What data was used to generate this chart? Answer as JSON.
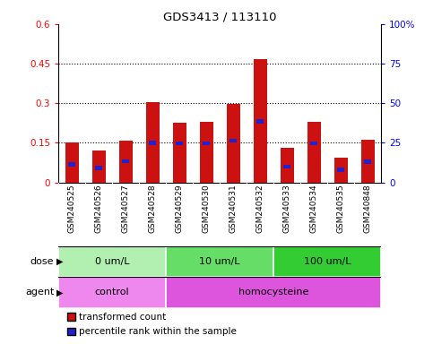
{
  "title": "GDS3413 / 113110",
  "samples": [
    "GSM240525",
    "GSM240526",
    "GSM240527",
    "GSM240528",
    "GSM240529",
    "GSM240530",
    "GSM240531",
    "GSM240532",
    "GSM240533",
    "GSM240534",
    "GSM240535",
    "GSM240848"
  ],
  "red_values": [
    0.15,
    0.122,
    0.158,
    0.305,
    0.225,
    0.23,
    0.297,
    0.468,
    0.132,
    0.228,
    0.095,
    0.163
  ],
  "blue_values": [
    0.068,
    0.055,
    0.08,
    0.15,
    0.148,
    0.148,
    0.158,
    0.23,
    0.06,
    0.148,
    0.048,
    0.078
  ],
  "ylim_left": [
    0,
    0.6
  ],
  "ylim_right": [
    0,
    100
  ],
  "yticks_left": [
    0,
    0.15,
    0.3,
    0.45,
    0.6
  ],
  "ytick_labels_left": [
    "0",
    "0.15",
    "0.3",
    "0.45",
    "0.6"
  ],
  "yticks_right": [
    0,
    25,
    50,
    75,
    100
  ],
  "ytick_labels_right": [
    "0",
    "25",
    "50",
    "75",
    "100%"
  ],
  "dose_groups": [
    {
      "label": "0 um/L",
      "start": 0,
      "end": 4,
      "color": "#b2f0b2"
    },
    {
      "label": "10 um/L",
      "start": 4,
      "end": 8,
      "color": "#66dd66"
    },
    {
      "label": "100 um/L",
      "start": 8,
      "end": 12,
      "color": "#33cc33"
    }
  ],
  "agent_groups": [
    {
      "label": "control",
      "start": 0,
      "end": 4,
      "color": "#ee88ee"
    },
    {
      "label": "homocysteine",
      "start": 4,
      "end": 12,
      "color": "#dd55dd"
    }
  ],
  "bar_color": "#cc1111",
  "blue_color": "#2222cc",
  "bar_width": 0.5,
  "bg_color": "#d8d8d8",
  "xtick_bg": "#d0d0d0"
}
